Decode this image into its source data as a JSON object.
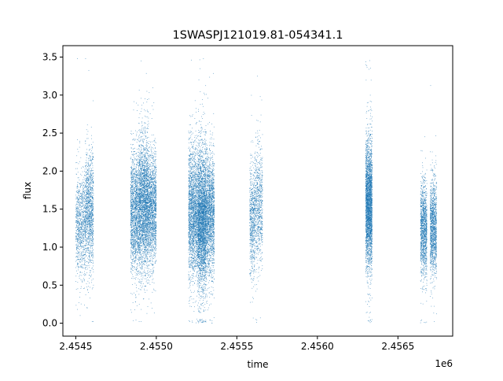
{
  "chart_data": {
    "type": "scatter",
    "title": "1SWASPJ121019.81-054341.1",
    "xlabel": "time",
    "ylabel": "flux",
    "x_offset_label": "1e6",
    "xlim": [
      2.45442,
      2.45684
    ],
    "ylim": [
      -0.17,
      3.65
    ],
    "xticks": [
      2.4545,
      2.455,
      2.4555,
      2.456,
      2.4565
    ],
    "xtick_labels": [
      "2.4545",
      "2.4550",
      "2.4555",
      "2.4560",
      "2.4565"
    ],
    "yticks": [
      0.0,
      0.5,
      1.0,
      1.5,
      2.0,
      2.5,
      3.0,
      3.5
    ],
    "ytick_labels": [
      "0.0",
      "0.5",
      "1.0",
      "1.5",
      "2.0",
      "2.5",
      "3.0",
      "3.5"
    ],
    "grid": false,
    "marker_color": "#1f77b4",
    "series": [
      {
        "clusters": [
          {
            "x_range": [
              2.4545,
              2.45456
            ],
            "y_center": 1.3,
            "y_spread": 0.32,
            "n": 900
          },
          {
            "x_range": [
              2.45456,
              2.45461
            ],
            "y_center": 1.5,
            "y_spread": 0.38,
            "n": 1200
          },
          {
            "x_range": [
              2.45484,
              2.45489
            ],
            "y_center": 1.45,
            "y_spread": 0.38,
            "n": 1500
          },
          {
            "x_range": [
              2.45489,
              2.45495
            ],
            "y_center": 1.55,
            "y_spread": 0.42,
            "n": 2600
          },
          {
            "x_range": [
              2.45495,
              2.455
            ],
            "y_center": 1.5,
            "y_spread": 0.36,
            "n": 1600
          },
          {
            "x_range": [
              2.4552,
              2.45526
            ],
            "y_center": 1.45,
            "y_spread": 0.42,
            "n": 2200
          },
          {
            "x_range": [
              2.45526,
              2.45531
            ],
            "y_center": 1.35,
            "y_spread": 0.44,
            "n": 3200
          },
          {
            "x_range": [
              2.45531,
              2.45536
            ],
            "y_center": 1.45,
            "y_spread": 0.38,
            "n": 1800
          },
          {
            "x_range": [
              2.45558,
              2.45561
            ],
            "y_center": 1.35,
            "y_spread": 0.35,
            "n": 600
          },
          {
            "x_range": [
              2.45561,
              2.45566
            ],
            "y_center": 1.55,
            "y_spread": 0.38,
            "n": 800
          },
          {
            "x_range": [
              2.4563,
              2.45634
            ],
            "y_center": 1.55,
            "y_spread": 0.4,
            "n": 3000
          },
          {
            "x_range": [
              2.45664,
              2.45668
            ],
            "y_center": 1.25,
            "y_spread": 0.3,
            "n": 1300
          },
          {
            "x_range": [
              2.4567,
              2.45674
            ],
            "y_center": 1.25,
            "y_spread": 0.3,
            "n": 1300
          }
        ]
      }
    ]
  }
}
